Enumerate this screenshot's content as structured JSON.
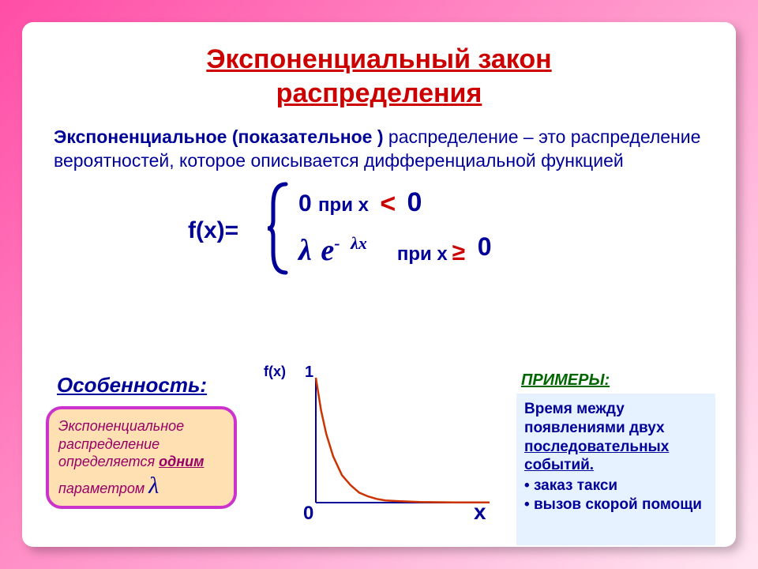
{
  "title_line1": "Экспоненциальный закон",
  "title_line2": "распределения",
  "definition": {
    "emph": "Экспоненциальное  (показательное )",
    "rest": "распределение – это распределение вероятностей, которое описывается дифференциальной функцией"
  },
  "formula": {
    "fx": "f(x)=",
    "case1_zero": "0",
    "case1_pri": "при x",
    "case1_lt": "<",
    "case1_rhs": "0",
    "case2_lambda": "λ",
    "case2_e": "e",
    "case2_sup_dash": "-",
    "case2_sup_lx": "λx",
    "case2_pri": "при x",
    "case2_ge": "≥",
    "case2_rhs": "0"
  },
  "feature_label": "Особенность:",
  "feature_box": {
    "line1": "Экспоненциальное распределение определяется ",
    "one": "одним",
    "line3": " параметром ",
    "lambda": "λ"
  },
  "chart": {
    "type": "line",
    "fx_label": "f(x)",
    "y_top": "1",
    "x_zero": "0",
    "x_label": "x",
    "curve_color": "#cc3300",
    "axis_color": "#000099",
    "background": "#ffffff",
    "xlim": [
      0,
      10
    ],
    "ylim": [
      0,
      1
    ],
    "points_x": [
      0,
      0.3,
      0.6,
      1.0,
      1.5,
      2.0,
      2.5,
      3.0,
      3.5,
      4.0,
      5.0,
      6.0,
      8.0,
      10.0
    ],
    "points_y": [
      1.0,
      0.74,
      0.55,
      0.37,
      0.22,
      0.14,
      0.08,
      0.05,
      0.03,
      0.018,
      0.01,
      0.005,
      0.002,
      0.001
    ],
    "line_width": 2.5
  },
  "examples_label": "ПРИМЕРЫ:",
  "examples": {
    "intro1": "Время между появлениями двух ",
    "intro_ul": "последовательных событий.",
    "items": [
      "заказ такси",
      "вызов скорой помощи"
    ]
  },
  "colors": {
    "title": "#cc0000",
    "body_text": "#000099",
    "accent_red": "#cc0000",
    "feature_border": "#cc33cc",
    "feature_bg": "#ffe0b3",
    "feature_text": "#990066",
    "examples_label": "#006600",
    "examples_bg": "#e6f2ff"
  }
}
